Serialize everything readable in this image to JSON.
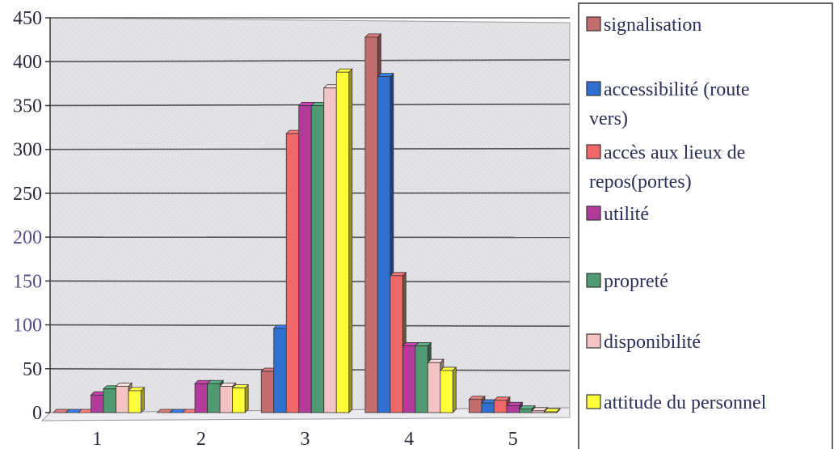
{
  "chart_data": {
    "type": "bar",
    "title": "",
    "xlabel": "",
    "ylabel": "",
    "categories": [
      "1",
      "2",
      "3",
      "4",
      "5"
    ],
    "ylim": [
      0,
      450
    ],
    "yticks": [
      "0",
      "50",
      "100",
      "150",
      "200",
      "250",
      "300",
      "350",
      "400",
      "450"
    ],
    "grid": true,
    "legend_position": "right",
    "series": [
      {
        "name": "signalisation",
        "color": "#c26d6d",
        "values": [
          0,
          0,
          47,
          428,
          15
        ]
      },
      {
        "name": "accessibilité (route vers)",
        "color": "#2f6fd0",
        "values": [
          0,
          0,
          96,
          383,
          11
        ]
      },
      {
        "name": "accès aux lieux de repos(portes)",
        "color": "#f06868",
        "values": [
          0,
          0,
          318,
          156,
          14
        ]
      },
      {
        "name": "utilité",
        "color": "#b23a9a",
        "values": [
          20,
          33,
          350,
          76,
          8
        ]
      },
      {
        "name": "propreté",
        "color": "#4f9a72",
        "values": [
          27,
          33,
          350,
          76,
          4
        ]
      },
      {
        "name": "disponibilité",
        "color": "#f4c4c4",
        "values": [
          30,
          30,
          370,
          57,
          2
        ]
      },
      {
        "name": "attitude du personnel",
        "color": "#ffff3a",
        "values": [
          25,
          28,
          388,
          48,
          1
        ]
      }
    ]
  }
}
